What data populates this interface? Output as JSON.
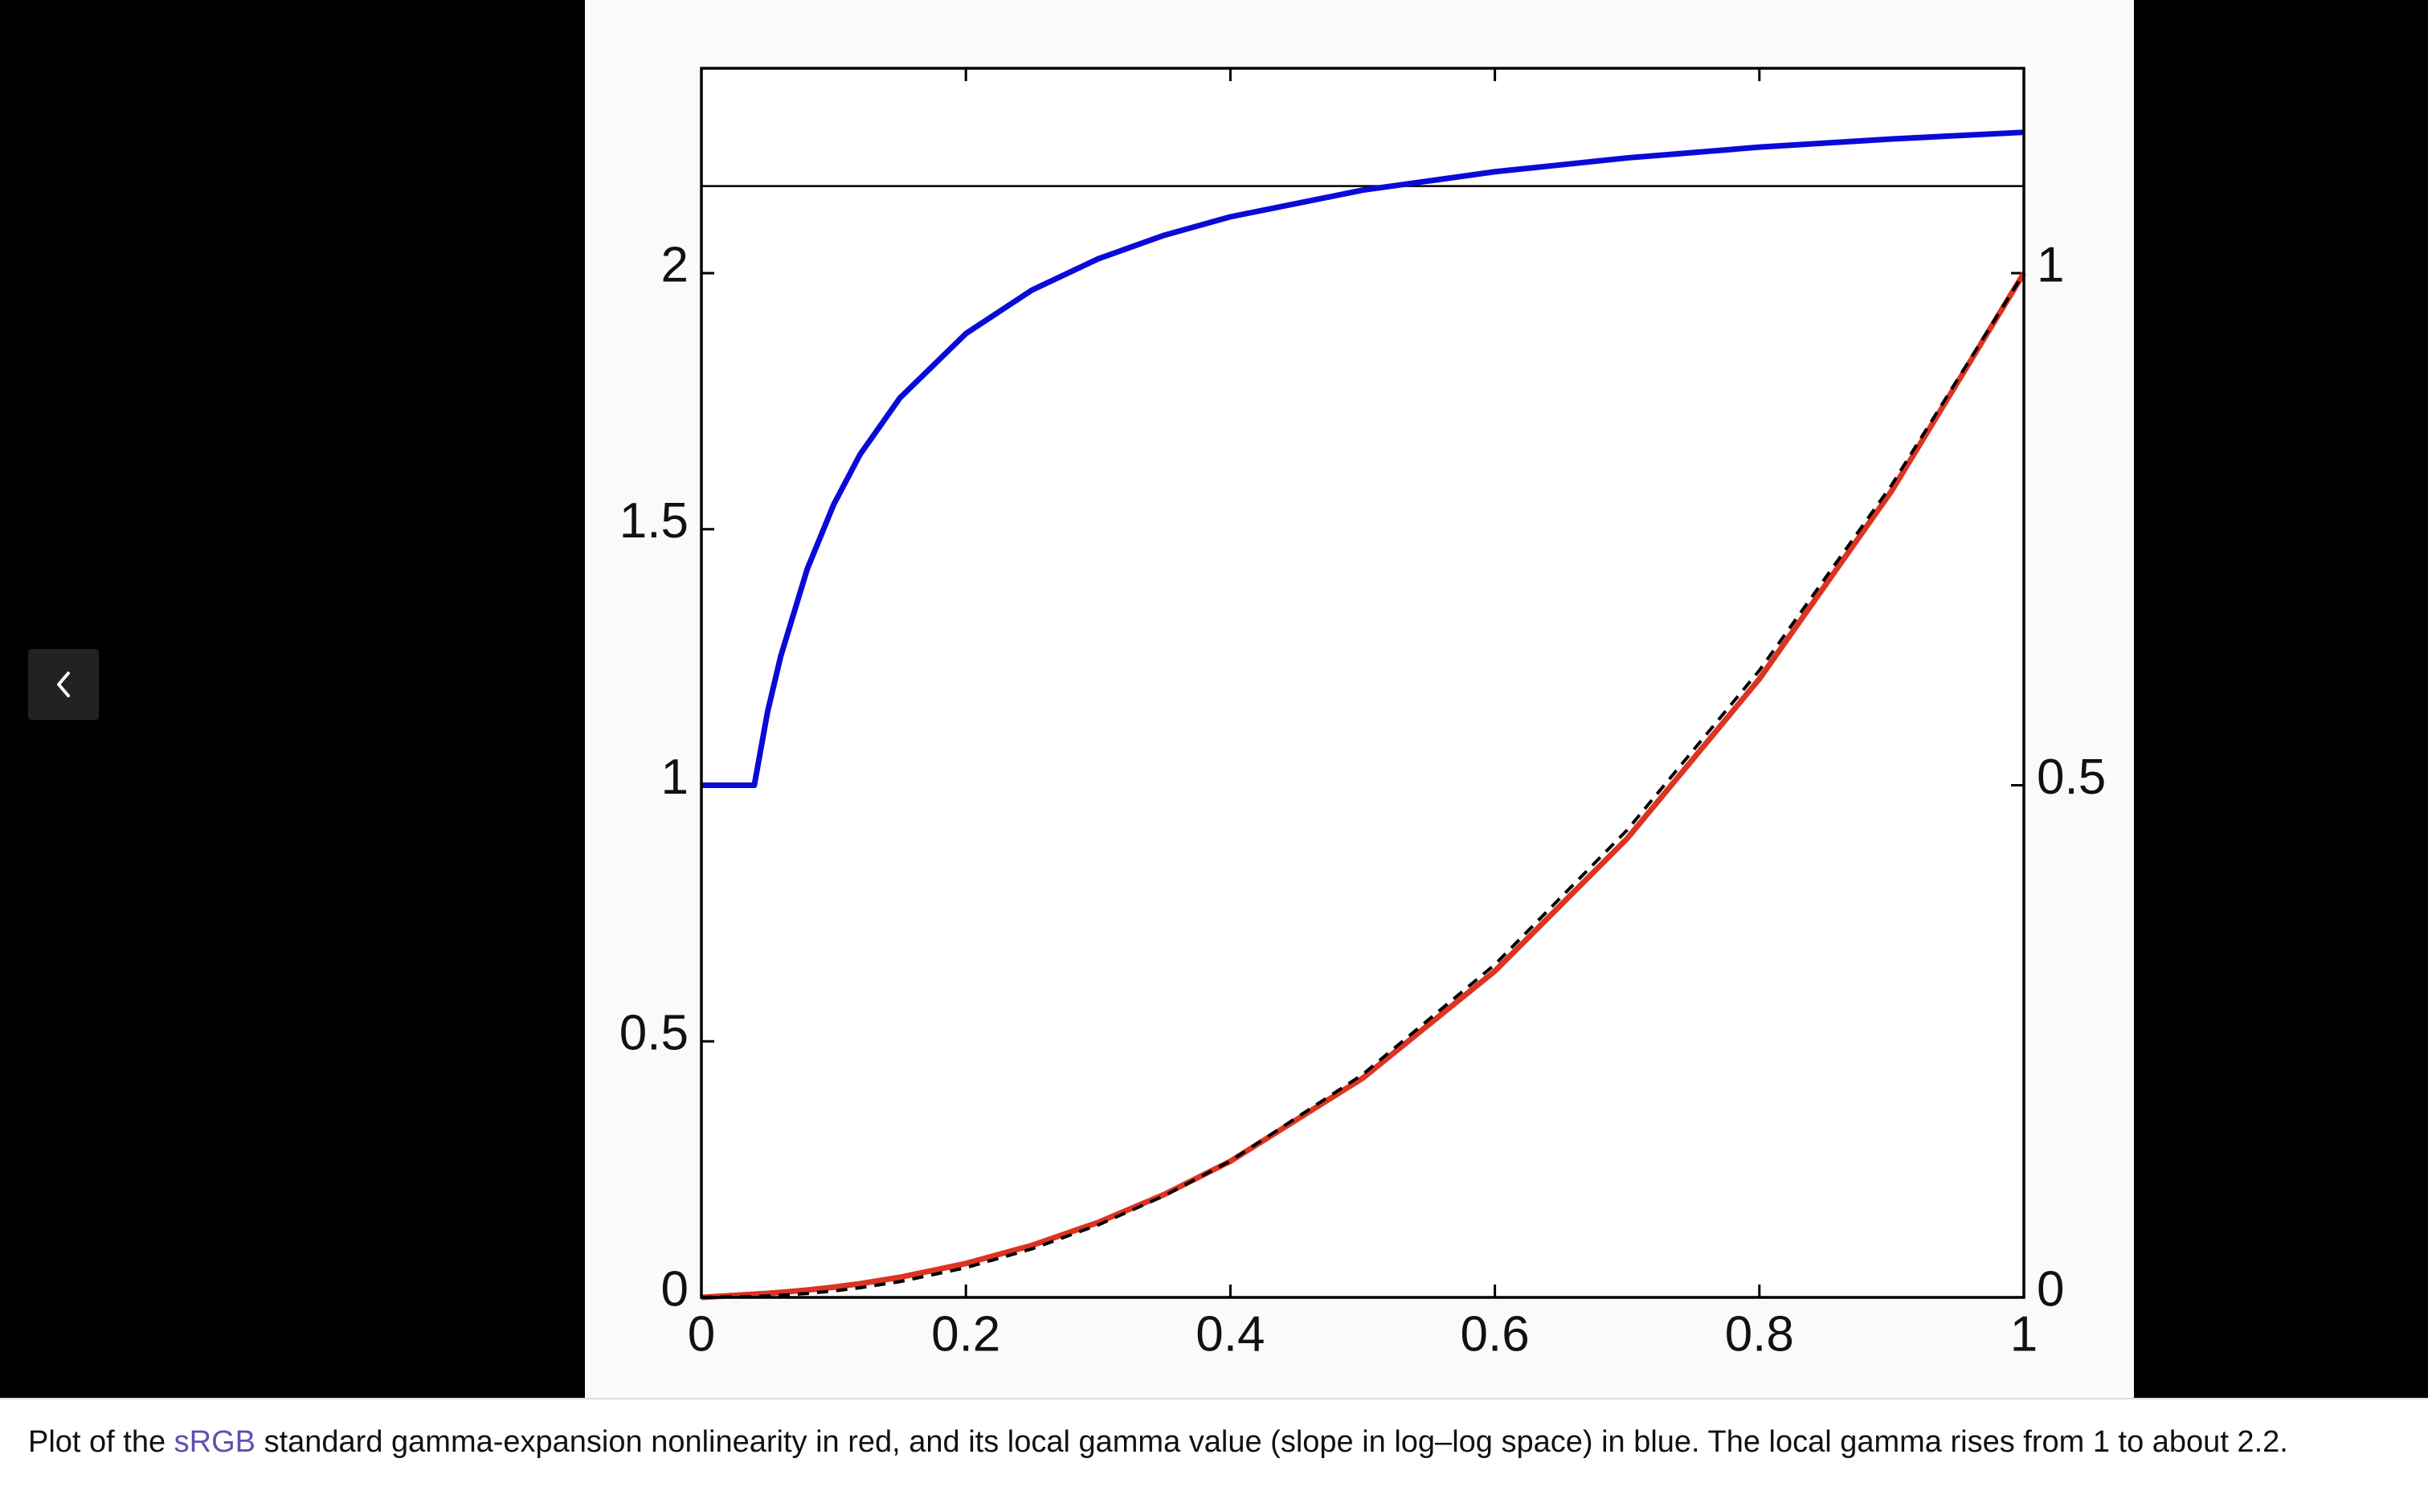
{
  "chart_data": {
    "type": "line",
    "x": [
      0,
      0.04,
      0.05,
      0.06,
      0.08,
      0.1,
      0.12,
      0.15,
      0.2,
      0.25,
      0.3,
      0.35,
      0.4,
      0.5,
      0.6,
      0.7,
      0.8,
      0.9,
      1
    ],
    "series": [
      {
        "color": "#0a0ad8",
        "axis": "y",
        "values": [
          1,
          1,
          1.143,
          1.252,
          1.422,
          1.548,
          1.646,
          1.756,
          1.882,
          1.967,
          2.028,
          2.074,
          2.11,
          2.162,
          2.198,
          2.225,
          2.246,
          2.262,
          2.275
        ]
      },
      {
        "color": "#dd3322",
        "axis": "y2",
        "values": [
          0,
          0.0031,
          0.0039,
          0.0049,
          0.0072,
          0.01,
          0.0134,
          0.0196,
          0.0331,
          0.0508,
          0.0732,
          0.1005,
          0.1329,
          0.214,
          0.3186,
          0.448,
          0.6038,
          0.7874,
          1
        ]
      },
      {
        "color": "#000000",
        "axis": "y2",
        "dashed": true,
        "values": [
          0,
          0.00084,
          0.00137,
          0.00205,
          0.00386,
          0.00631,
          0.0094,
          0.0154,
          0.029,
          0.0474,
          0.0707,
          0.0992,
          0.1332,
          0.2176,
          0.325,
          0.4563,
          0.6121,
          0.7931,
          1
        ]
      }
    ],
    "hline": {
      "value": 2.17,
      "color": "#000000"
    },
    "xlim": [
      0,
      1
    ],
    "xticks": [
      0,
      0.2,
      0.4,
      0.6,
      0.8,
      1
    ],
    "ylim": [
      0,
      2.4
    ],
    "yticks": [
      0,
      0.5,
      1,
      1.5,
      2
    ],
    "y2lim": [
      0,
      1.2
    ],
    "y2ticks": [
      0,
      0.5,
      1
    ],
    "grid": false
  },
  "caption": {
    "before": "Plot of the ",
    "link": "sRGB",
    "after": " standard gamma-expansion nonlinearity in red, and its local gamma value (slope in log–log space) in blue. The local gamma rises from 1 to about 2.2."
  }
}
